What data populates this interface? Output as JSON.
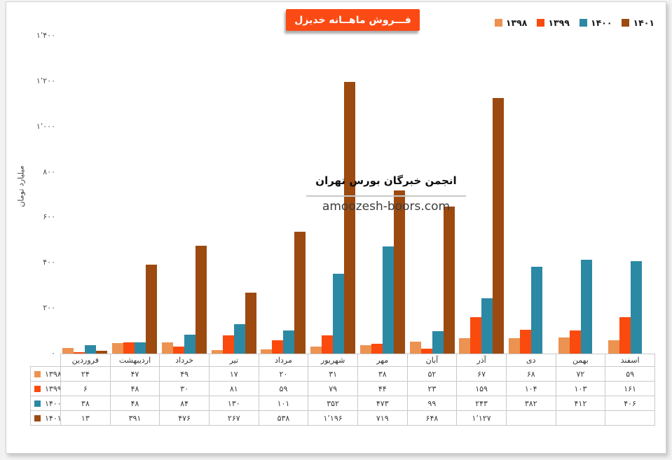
{
  "title": {
    "text": "فـــروش ماهــانه خدیزل",
    "bg_color": "#FB4A14",
    "text_color": "#ffffff"
  },
  "watermark": {
    "line1": "انجمن خبرگان بورس تهران",
    "line2": "amoozesh-boors.com"
  },
  "chart_data": {
    "type": "bar",
    "title": "فـــروش ماهــانه خدیزل",
    "ylabel": "میلیارد تومان",
    "xlabel": "",
    "ylim": [
      0,
      1400
    ],
    "yticks": [
      0,
      200,
      400,
      600,
      800,
      1000,
      1200,
      1400
    ],
    "grid": false,
    "legend_position": "top-right",
    "data_table_shown": true,
    "categories": [
      "فروردین",
      "اردیبهشت",
      "خرداد",
      "تیر",
      "مرداد",
      "شهریور",
      "مهر",
      "آبان",
      "آذر",
      "دی",
      "بهمن",
      "اسفند"
    ],
    "series": [
      {
        "name": "۱۳۹۸",
        "color": "#EC9351",
        "values": [
          24,
          47,
          49,
          17,
          20,
          31,
          38,
          52,
          67,
          68,
          72,
          59
        ]
      },
      {
        "name": "۱۳۹۹",
        "color": "#FB4A0E",
        "values": [
          6,
          48,
          30,
          81,
          59,
          79,
          44,
          23,
          159,
          104,
          103,
          161
        ]
      },
      {
        "name": "۱۴۰۰",
        "color": "#2C89A4",
        "values": [
          38,
          48,
          84,
          130,
          101,
          352,
          473,
          99,
          243,
          382,
          412,
          406
        ]
      },
      {
        "name": "۱۴۰۱",
        "color": "#9C4A10",
        "values": [
          13,
          391,
          476,
          267,
          538,
          1196,
          719,
          648,
          1127,
          null,
          null,
          null
        ]
      }
    ],
    "number_locale": "fa",
    "table_border_color": "#c9c9c9"
  }
}
